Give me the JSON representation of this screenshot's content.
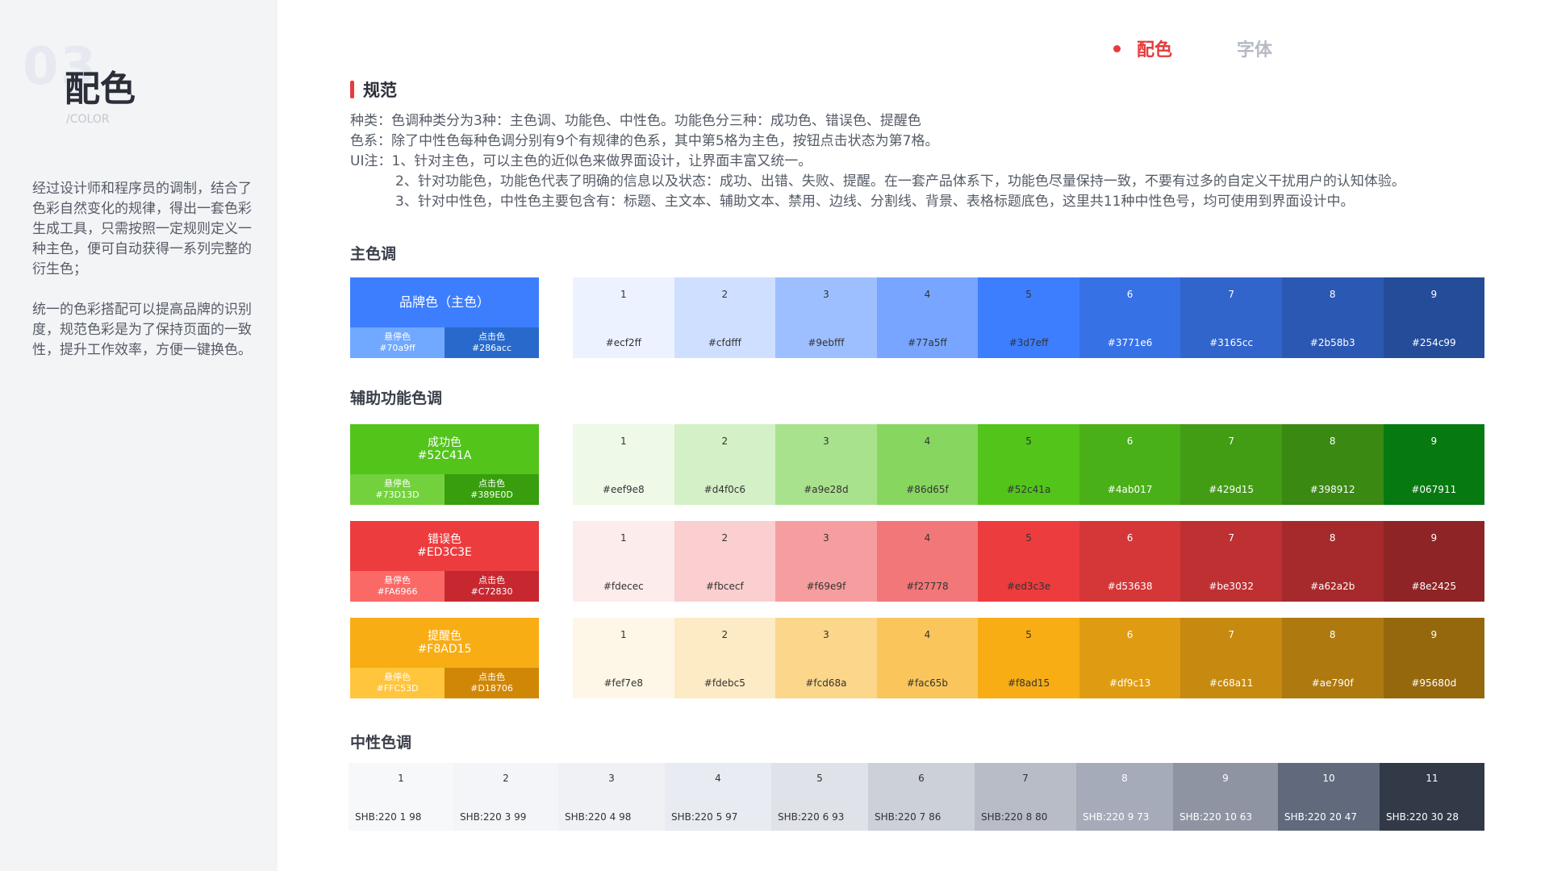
{
  "sidebar": {
    "section_number": "03",
    "title": "配色",
    "subtitle": "/COLOR",
    "paragraphs": [
      "经过设计师和程序员的调制，结合了色彩自然变化的规律，得出一套色彩生成工具，只需按照一定规则定义一种主色，便可自动获得一系列完整的衍生色；",
      "统一的色彩搭配可以提高品牌的识别度，规范色彩是为了保持页面的一致性，提升工作效率，方便一键换色。"
    ]
  },
  "nav": {
    "active": "配色",
    "inactive": "字体",
    "accent": "#e63c3c"
  },
  "spec": {
    "title": "规范",
    "lines": [
      "种类：色调种类分为3种：主色调、功能色、中性色。功能色分三种：成功色、错误色、提醒色",
      "色系：除了中性色每种色调分别有9个有规律的色系，其中第5格为主色，按钮点击状态为第7格。",
      "UI注：1、针对主色，可以主色的近似色来做界面设计，让界面丰富又统一。"
    ],
    "indent_lines": [
      "2、针对功能色，功能色代表了明确的信息以及状态：成功、出错、失败、提醒。在一套产品体系下，功能色尽量保持一致，不要有过多的自定义干扰用户的认知体验。",
      "3、针对中性色，中性色主要包含有：标题、主文本、辅助文本、禁用、边线、分割线、背景、表格标题底色，这里共11种中性色号，均可使用到界面设计中。"
    ]
  },
  "groups": {
    "primary_title": "主色调",
    "functional_title": "辅助功能色调",
    "neutral_title": "中性色调"
  },
  "palettes": [
    {
      "main_label": "品牌色（主色）",
      "main_code": "",
      "main_color": "#3d7eff",
      "hover_label": "悬停色",
      "hover_code": "#70a9ff",
      "hover_color": "#70a9ff",
      "press_label": "点击色",
      "press_code": "#286acc",
      "press_color": "#286acc",
      "cells": [
        {
          "n": "1",
          "hex": "#ecf2ff"
        },
        {
          "n": "2",
          "hex": "#cfdfff"
        },
        {
          "n": "3",
          "hex": "#9ebfff"
        },
        {
          "n": "4",
          "hex": "#77a5ff"
        },
        {
          "n": "5",
          "hex": "#3d7eff"
        },
        {
          "n": "6",
          "hex": "#3771e6"
        },
        {
          "n": "7",
          "hex": "#3165cc"
        },
        {
          "n": "8",
          "hex": "#2b58b3"
        },
        {
          "n": "9",
          "hex": "#254c99"
        }
      ]
    },
    {
      "main_label": "成功色",
      "main_code": "#52C41A",
      "main_color": "#52c41a",
      "hover_label": "悬停色",
      "hover_code": "#73D13D",
      "hover_color": "#73d13d",
      "press_label": "点击色",
      "press_code": "#389E0D",
      "press_color": "#389e0d",
      "cells": [
        {
          "n": "1",
          "hex": "#eef9e8"
        },
        {
          "n": "2",
          "hex": "#d4f0c6"
        },
        {
          "n": "3",
          "hex": "#a9e28d"
        },
        {
          "n": "4",
          "hex": "#86d65f"
        },
        {
          "n": "5",
          "hex": "#52c41a"
        },
        {
          "n": "6",
          "hex": "#4ab017"
        },
        {
          "n": "7",
          "hex": "#429d15"
        },
        {
          "n": "8",
          "hex": "#398912"
        },
        {
          "n": "9",
          "hex": "#067911"
        }
      ]
    },
    {
      "main_label": "错误色",
      "main_code": "#ED3C3E",
      "main_color": "#ed3c3e",
      "hover_label": "悬停色",
      "hover_code": "#FA6966",
      "hover_color": "#fa6966",
      "press_label": "点击色",
      "press_code": "#C72830",
      "press_color": "#c72830",
      "cells": [
        {
          "n": "1",
          "hex": "#fdecec"
        },
        {
          "n": "2",
          "hex": "#fbcecf"
        },
        {
          "n": "3",
          "hex": "#f69e9f"
        },
        {
          "n": "4",
          "hex": "#f27778"
        },
        {
          "n": "5",
          "hex": "#ed3c3e"
        },
        {
          "n": "6",
          "hex": "#d53638"
        },
        {
          "n": "7",
          "hex": "#be3032"
        },
        {
          "n": "8",
          "hex": "#a62a2b"
        },
        {
          "n": "9",
          "hex": "#8e2425"
        }
      ]
    },
    {
      "main_label": "提醒色",
      "main_code": "#F8AD15",
      "main_color": "#f8ad15",
      "hover_label": "悬停色",
      "hover_code": "#FFC53D",
      "hover_color": "#ffc53d",
      "press_label": "点击色",
      "press_code": "#D18706",
      "press_color": "#d18706",
      "cells": [
        {
          "n": "1",
          "hex": "#fef7e8"
        },
        {
          "n": "2",
          "hex": "#fdebc5"
        },
        {
          "n": "3",
          "hex": "#fcd68a"
        },
        {
          "n": "4",
          "hex": "#fac65b"
        },
        {
          "n": "5",
          "hex": "#f8ad15"
        },
        {
          "n": "6",
          "hex": "#df9c13"
        },
        {
          "n": "7",
          "hex": "#c68a11"
        },
        {
          "n": "8",
          "hex": "#ae790f"
        },
        {
          "n": "9",
          "hex": "#95680d"
        }
      ]
    }
  ],
  "neutrals": [
    {
      "n": "1",
      "code": "SHB:220 1 98",
      "color": "#f7f8f9"
    },
    {
      "n": "2",
      "code": "SHB:220 3 99",
      "color": "#f4f5f8"
    },
    {
      "n": "3",
      "code": "SHB:220 4 98",
      "color": "#eff1f5"
    },
    {
      "n": "4",
      "code": "SHB:220 5 97",
      "color": "#e8ebf1"
    },
    {
      "n": "5",
      "code": "SHB:220 6 93",
      "color": "#dfe2e8"
    },
    {
      "n": "6",
      "code": "SHB:220 7 86",
      "color": "#ccd0d9"
    },
    {
      "n": "7",
      "code": "SHB:220 8 80",
      "color": "#b8bcc6"
    },
    {
      "n": "8",
      "code": "SHB:220 9 73",
      "color": "#a5abb8"
    },
    {
      "n": "9",
      "code": "SHB:220 10 63",
      "color": "#8e94a2"
    },
    {
      "n": "10",
      "code": "SHB:220 20 47",
      "color": "#606a7c"
    },
    {
      "n": "11",
      "code": "SHB:220 30 28",
      "color": "#323a47"
    }
  ]
}
